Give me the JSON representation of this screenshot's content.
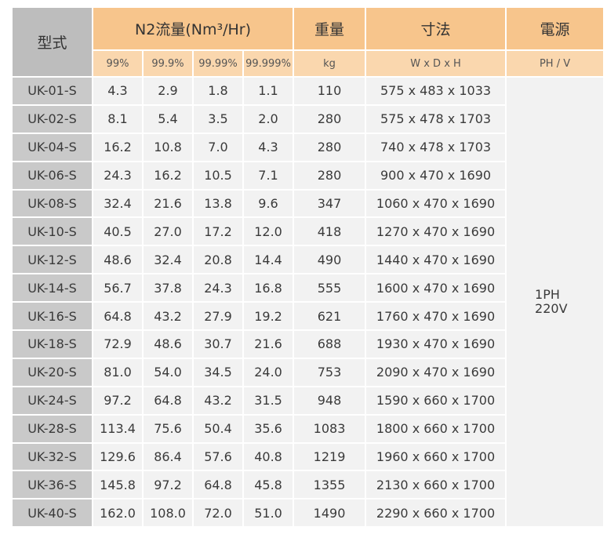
{
  "headers": {
    "model": "型式",
    "flow": "N2流量(Nm³/Hr)",
    "weight": "重量",
    "size": "寸法",
    "power": "電源",
    "purity": [
      "99%",
      "99.9%",
      "99.99%",
      "99.999%"
    ],
    "weight_unit": "kg",
    "size_unit": "W x D x H",
    "power_unit": "PH / V"
  },
  "power_value": {
    "line1": "1PH",
    "line2": "220V"
  },
  "rows": [
    {
      "model": "UK-01-S",
      "f1": "4.3",
      "f2": "2.9",
      "f3": "1.8",
      "f4": "1.1",
      "kg": "110",
      "dims": "575 x 483 x 1033"
    },
    {
      "model": "UK-02-S",
      "f1": "8.1",
      "f2": "5.4",
      "f3": "3.5",
      "f4": "2.0",
      "kg": "280",
      "dims": "575 x 478 x 1703"
    },
    {
      "model": "UK-04-S",
      "f1": "16.2",
      "f2": "10.8",
      "f3": "7.0",
      "f4": "4.3",
      "kg": "280",
      "dims": "740 x 478 x 1703"
    },
    {
      "model": "UK-06-S",
      "f1": "24.3",
      "f2": "16.2",
      "f3": "10.5",
      "f4": "7.1",
      "kg": "280",
      "dims": "900 x 470 x 1690"
    },
    {
      "model": "UK-08-S",
      "f1": "32.4",
      "f2": "21.6",
      "f3": "13.8",
      "f4": "9.6",
      "kg": "347",
      "dims": "1060 x 470 x 1690"
    },
    {
      "model": "UK-10-S",
      "f1": "40.5",
      "f2": "27.0",
      "f3": "17.2",
      "f4": "12.0",
      "kg": "418",
      "dims": "1270 x 470 x 1690"
    },
    {
      "model": "UK-12-S",
      "f1": "48.6",
      "f2": "32.4",
      "f3": "20.8",
      "f4": "14.4",
      "kg": "490",
      "dims": "1440 x 470 x 1690"
    },
    {
      "model": "UK-14-S",
      "f1": "56.7",
      "f2": "37.8",
      "f3": "24.3",
      "f4": "16.8",
      "kg": "555",
      "dims": "1600 x 470 x 1690"
    },
    {
      "model": "UK-16-S",
      "f1": "64.8",
      "f2": "43.2",
      "f3": "27.9",
      "f4": "19.2",
      "kg": "621",
      "dims": "1760 x 470 x 1690"
    },
    {
      "model": "UK-18-S",
      "f1": "72.9",
      "f2": "48.6",
      "f3": "30.7",
      "f4": "21.6",
      "kg": "688",
      "dims": "1930 x 470 x 1690"
    },
    {
      "model": "UK-20-S",
      "f1": "81.0",
      "f2": "54.0",
      "f3": "34.5",
      "f4": "24.0",
      "kg": "753",
      "dims": "2090 x 470 x 1690"
    },
    {
      "model": "UK-24-S",
      "f1": "97.2",
      "f2": "64.8",
      "f3": "43.2",
      "f4": "31.5",
      "kg": "948",
      "dims": "1590 x 660 x 1700"
    },
    {
      "model": "UK-28-S",
      "f1": "113.4",
      "f2": "75.6",
      "f3": "50.4",
      "f4": "35.6",
      "kg": "1083",
      "dims": "1800 x 660 x 1700"
    },
    {
      "model": "UK-32-S",
      "f1": "129.6",
      "f2": "86.4",
      "f3": "57.6",
      "f4": "40.8",
      "kg": "1219",
      "dims": "1960 x 660 x 1700"
    },
    {
      "model": "UK-36-S",
      "f1": "145.8",
      "f2": "97.2",
      "f3": "64.8",
      "f4": "45.8",
      "kg": "1355",
      "dims": "2130 x 660 x 1700"
    },
    {
      "model": "UK-40-S",
      "f1": "162.0",
      "f2": "108.0",
      "f3": "72.0",
      "f4": "51.0",
      "kg": "1490",
      "dims": "2290 x 660 x 1700"
    }
  ]
}
